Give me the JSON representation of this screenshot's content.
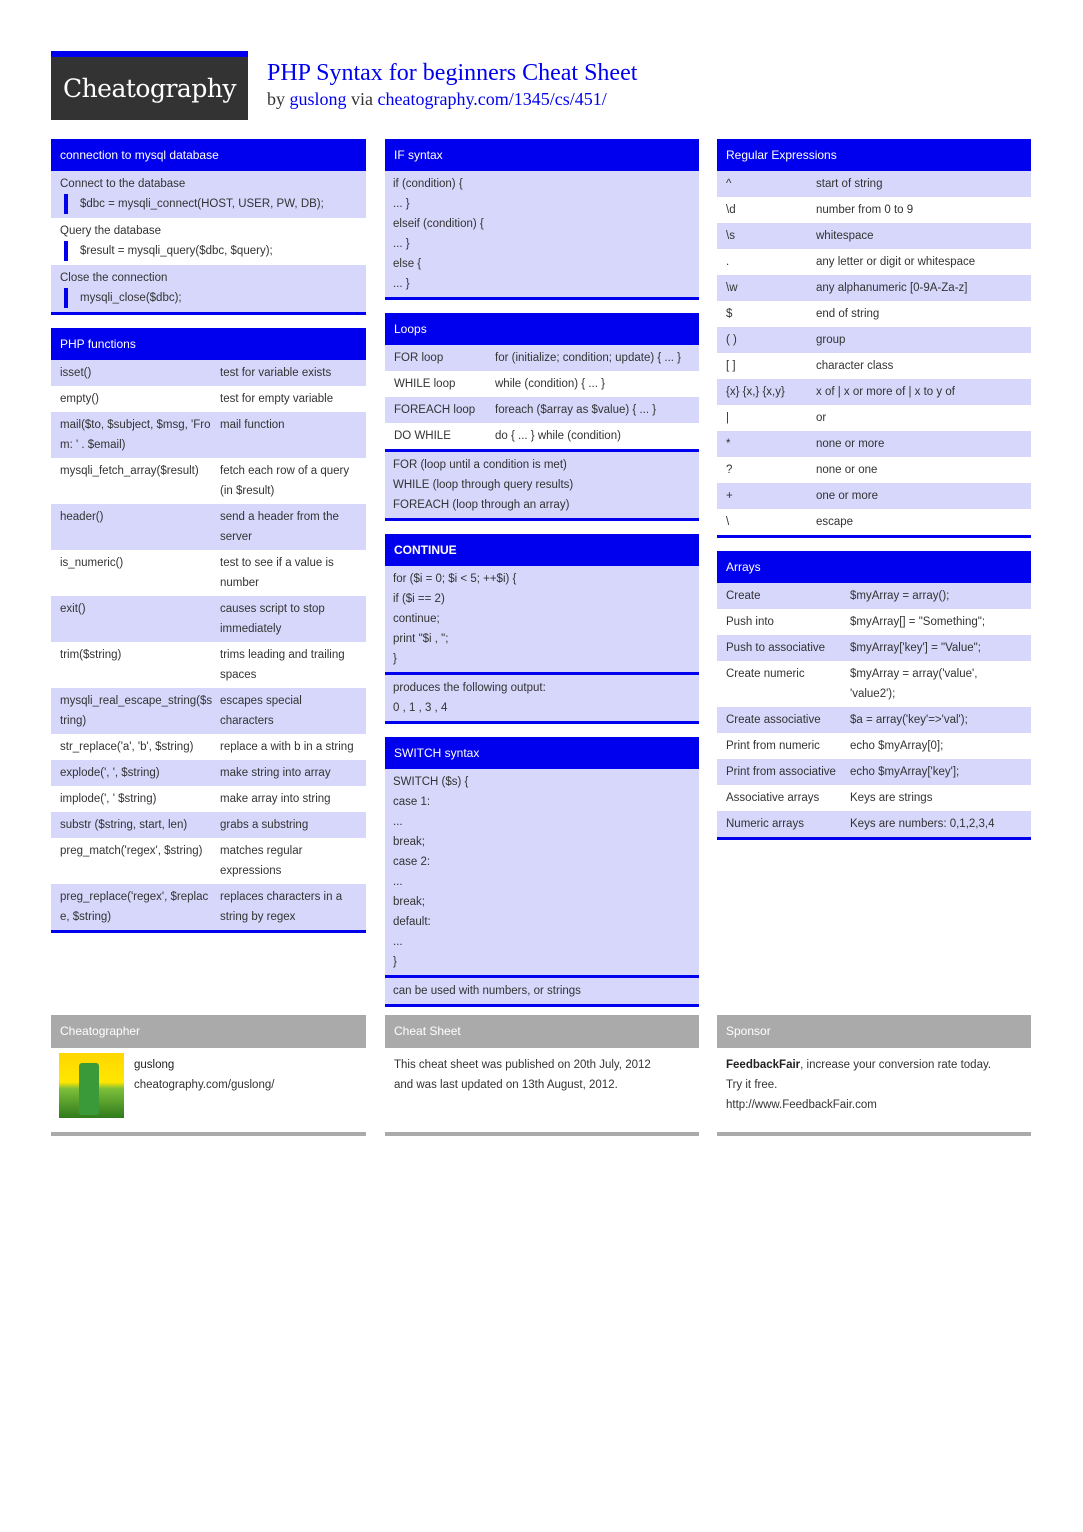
{
  "header": {
    "logo": "Cheatography",
    "title": "PHP Syntax for beginners Cheat Sheet",
    "by": "by",
    "author": "guslong",
    "via": "via",
    "url": "cheatography.com/1345/cs/451/"
  },
  "colors": {
    "accent": "#0000ee",
    "row_alt": "#d7d7fb",
    "footer": "#aaaaaa"
  },
  "columns": [
    [
      {
        "title": "connection to mysql database",
        "parts": [
          {
            "type": "blocks",
            "items": [
              {
                "label": "Connect to the database",
                "code": "$dbc = mysqli_connect(HOST, USER, PW, DB);"
              },
              {
                "label": "Query the database",
                "code": "$result = mysqli_query($dbc, $query);"
              },
              {
                "label": "Close the connection",
                "code": "mysqli_close($dbc);"
              }
            ]
          }
        ]
      },
      {
        "title": "PHP functions",
        "kw": 160,
        "parts": [
          {
            "type": "table",
            "rows": [
              [
                "isset()",
                "test for variable exists"
              ],
              [
                "empty()",
                "test for empty variable"
              ],
              [
                "mail($to, $subject, $msg, 'From: ' . $email)",
                "mail function"
              ],
              [
                "mysqli_fetch_array($result)",
                "fetch each row of a query (in $result)"
              ],
              [
                "header()",
                "send a header from the server"
              ],
              [
                "is_numeric()",
                "test to see if a value is number"
              ],
              [
                "exit()",
                "causes script to stop immediately"
              ],
              [
                "trim($string)",
                "trims leading and trailing spaces"
              ],
              [
                "mysqli_real_escape_string($string)",
                "escapes special characters"
              ],
              [
                "str_replace('a', 'b', $string)",
                "replace a with b in a string"
              ],
              [
                "explode(', ', $string)",
                "make string into array"
              ],
              [
                "implode(', ' $string)",
                "make array into string"
              ],
              [
                "substr ($string, start, len)",
                "grabs a substring"
              ],
              [
                "preg_match('regex', $string)",
                "matches regular expressions"
              ],
              [
                "preg_replace('regex', $replace, $string)",
                "replaces characters in a string by regex"
              ]
            ]
          }
        ]
      }
    ],
    [
      {
        "title": "IF syntax",
        "parts": [
          {
            "type": "text",
            "lines": [
              "if (condition) {",
              "... }",
              "elseif (condition) {",
              "... }",
              "else {",
              "... }"
            ]
          }
        ]
      },
      {
        "title": "Loops",
        "kw": 101,
        "parts": [
          {
            "type": "table",
            "rows": [
              [
                "FOR loop",
                "for (initialize; condition; update) { ... }"
              ],
              [
                "WHILE loop",
                "while (condition) { ... }"
              ],
              [
                "FOREACH loop",
                "foreach ($array as $value) { ... }"
              ],
              [
                "DO WHILE",
                "do { ... } while (condition)"
              ]
            ]
          },
          {
            "type": "text",
            "lines": [
              "FOR (loop until a condition is met)",
              "WHILE (loop through query results)",
              "FOREACH (loop through an array)"
            ]
          }
        ]
      },
      {
        "title": "CONTINUE",
        "bold": true,
        "parts": [
          {
            "type": "text",
            "lines": [
              "for ($i = 0; $i < 5; ++$i) {",
              "if ($i == 2)",
              "continue;",
              "print \"$i , \";",
              "}"
            ]
          },
          {
            "type": "text",
            "lines": [
              "produces the following output:",
              "0 , 1 , 3 , 4"
            ]
          }
        ]
      },
      {
        "title": "SWITCH syntax",
        "parts": [
          {
            "type": "text",
            "lines": [
              "SWITCH ($s) {",
              "case 1:",
              "...",
              "break;",
              "case 2:",
              "...",
              "break;",
              "default:",
              "...",
              "}"
            ]
          },
          {
            "type": "text",
            "lines": [
              "can be used with numbers, or strings"
            ]
          }
        ]
      }
    ],
    [
      {
        "title": "Regular Expressions",
        "kw": 90,
        "parts": [
          {
            "type": "table",
            "rows": [
              [
                "^",
                "start of string"
              ],
              [
                "\\d",
                "number from 0 to 9"
              ],
              [
                "\\s",
                "whitespace"
              ],
              [
                ".",
                "any letter or digit or whitespace"
              ],
              [
                "\\w",
                "any alphanumeric [0-9A-Za-z]"
              ],
              [
                "$",
                "end of string"
              ],
              [
                "( )",
                "group"
              ],
              [
                "[ ]",
                "character class"
              ],
              [
                "{x} {x,} {x,y}",
                "x of | x or more of | x to y of"
              ],
              [
                "|",
                "or"
              ],
              [
                "*",
                "none or more"
              ],
              [
                "?",
                "none or one"
              ],
              [
                "+",
                "one or more"
              ],
              [
                "\\",
                "escape"
              ]
            ]
          }
        ]
      },
      {
        "title": "Arrays",
        "kw": 124,
        "parts": [
          {
            "type": "table",
            "rows": [
              [
                "Create",
                "$myArray = array();"
              ],
              [
                "Push into",
                "$myArray[] = \"Something\";"
              ],
              [
                "Push to associative",
                "$myArray['key'] = \"Value\";"
              ],
              [
                "Create numeric",
                "$myArray = array('value', 'value2');"
              ],
              [
                "Create associative",
                "$a = array('key'=>'val');"
              ],
              [
                "Print from numeric",
                "echo $myArray[0];"
              ],
              [
                "Print from associative",
                "echo $myArray['key'];"
              ],
              [
                "Associative arrays",
                "Keys are strings"
              ],
              [
                "Numeric arrays",
                "Keys are numbers: 0,1,2,3,4"
              ]
            ]
          }
        ]
      }
    ]
  ],
  "footer": {
    "cheatographer": {
      "title": "Cheatographer",
      "name": "guslong",
      "url": "cheatography.com/guslong/"
    },
    "cheatsheet": {
      "title": "Cheat Sheet",
      "lines": [
        "This cheat sheet was published on 20th July, 2012",
        "and was last updated on 13th August, 2012."
      ]
    },
    "sponsor": {
      "title": "Sponsor",
      "brand": "FeedbackFair",
      "text": ", increase your conversion rate today.",
      "line2": "Try it free.",
      "url": "http://www.FeedbackFair.com"
    }
  }
}
